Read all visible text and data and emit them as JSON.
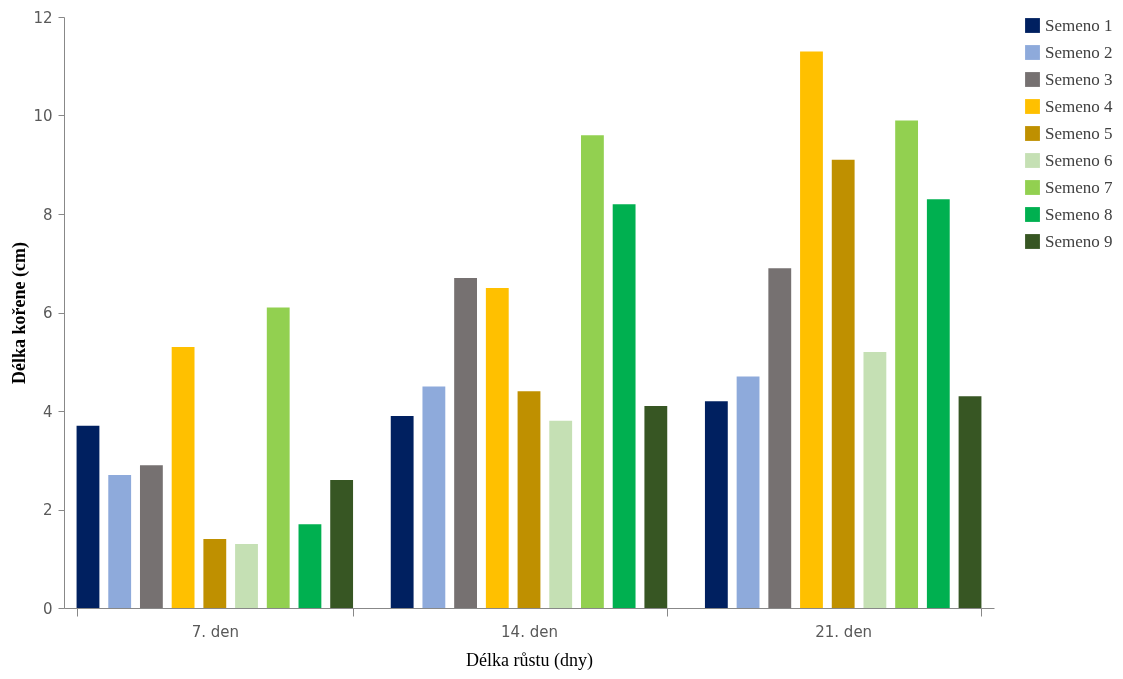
{
  "chart_data": {
    "type": "bar",
    "xlabel": "Délka růstu (dny)",
    "ylabel": "Délka kořene (cm)",
    "categories": [
      "7. den",
      "14. den",
      "21. den"
    ],
    "series": [
      {
        "name": "Semeno 1",
        "color": "#002060",
        "values": [
          3.7,
          3.9,
          4.2
        ]
      },
      {
        "name": "Semeno 2",
        "color": "#8eaadb",
        "values": [
          2.7,
          4.5,
          4.7
        ]
      },
      {
        "name": "Semeno 3",
        "color": "#767171",
        "values": [
          2.9,
          6.7,
          6.9
        ]
      },
      {
        "name": "Semeno 4",
        "color": "#ffc000",
        "values": [
          5.3,
          6.5,
          11.3
        ]
      },
      {
        "name": "Semeno 5",
        "color": "#bf9000",
        "values": [
          1.4,
          4.4,
          9.1
        ]
      },
      {
        "name": "Semeno 6",
        "color": "#c5e0b4",
        "values": [
          1.3,
          3.8,
          5.2
        ]
      },
      {
        "name": "Semeno 7",
        "color": "#92d050",
        "values": [
          6.1,
          9.6,
          9.9
        ]
      },
      {
        "name": "Semeno 8",
        "color": "#00b050",
        "values": [
          1.7,
          8.2,
          8.3
        ]
      },
      {
        "name": "Semeno 9",
        "color": "#375623",
        "values": [
          2.6,
          4.1,
          4.3
        ]
      }
    ],
    "ylim": [
      0,
      12
    ],
    "yticks": [
      0,
      2,
      4,
      6,
      8,
      10,
      12
    ],
    "grid": false,
    "legend": "right"
  }
}
